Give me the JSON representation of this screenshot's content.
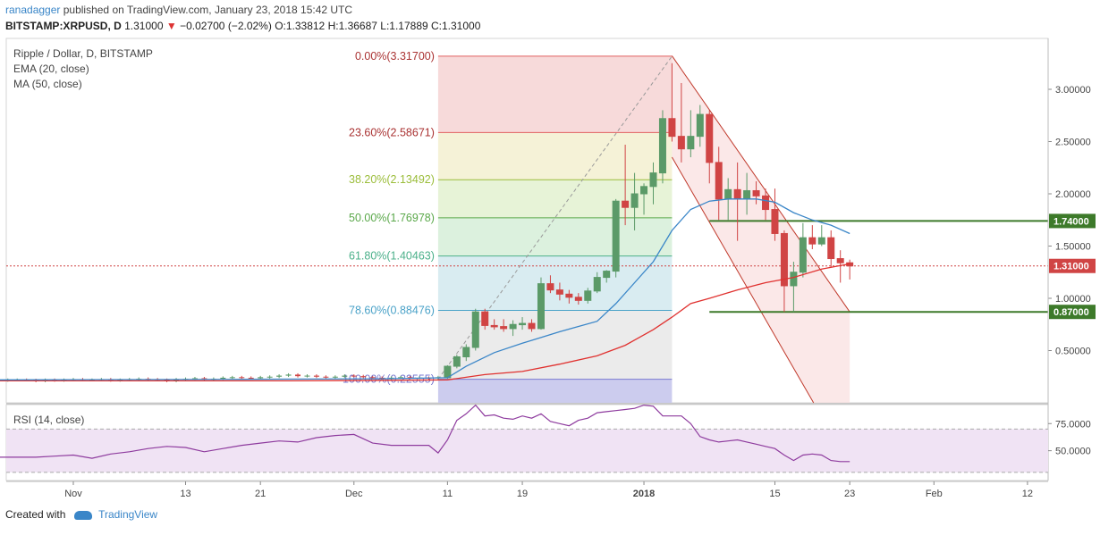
{
  "header": {
    "user": "ranadagger",
    "published_text": "published on TradingView.com, January 23, 2018 15:42 UTC",
    "symbol": "BITSTAMP:XRPUSD, D",
    "last": "1.31000",
    "change": "−0.02700 (−2.02%)",
    "ohlc": "O:1.33812 H:1.36687 L:1.17889 C:1.31000"
  },
  "footer": {
    "created_with": "Created with",
    "brand": "TradingView"
  },
  "colors": {
    "up": "#5b9a68",
    "down": "#d04444",
    "ema": "#3a86c8",
    "ma": "#e0312f",
    "rsi": "#8e3b9e",
    "trend": "#3d7a2a"
  },
  "chart_data": [
    {
      "type": "candlestick",
      "legend": [
        "Ripple / Dollar, D, BITSTAMP",
        "EMA (20, close)",
        "MA (50, close)"
      ],
      "ylim": [
        0,
        3.4
      ],
      "yticks": [
        "3.00000",
        "2.50000",
        "2.00000",
        "1.50000",
        "1.00000",
        "0.50000"
      ],
      "ytick_values": [
        3.0,
        2.5,
        2.0,
        1.5,
        1.0,
        0.5
      ],
      "xticks": [
        "Nov",
        "13",
        "21",
        "Dec",
        "11",
        "19",
        "2018",
        "15",
        "23",
        "Feb",
        "12"
      ],
      "xtick_days": [
        2,
        14,
        22,
        32,
        42,
        50,
        63,
        77,
        85,
        94,
        104
      ],
      "last_price_label": "1.31000",
      "last_price": 1.31,
      "fibonacci": [
        {
          "label": "0.00%(3.31700)",
          "value": 3.317
        },
        {
          "label": "23.60%(2.58671)",
          "value": 2.58671
        },
        {
          "label": "38.20%(2.13492)",
          "value": 2.13492
        },
        {
          "label": "50.00%(1.76978)",
          "value": 1.76978
        },
        {
          "label": "61.80%(1.40463)",
          "value": 1.40463
        },
        {
          "label": "78.60%(0.88476)",
          "value": 0.88476
        },
        {
          "label": "100.00%(0.22555)",
          "value": 0.22555
        }
      ],
      "horizontal_lines": [
        {
          "label": "1.74000",
          "value": 1.74
        },
        {
          "label": "0.87000",
          "value": 0.87
        }
      ],
      "candles_early": {
        "start_day": -6,
        "end_day": 42,
        "base": 0.22,
        "values": [
          0.215,
          0.22,
          0.22,
          0.218,
          0.21,
          0.22,
          0.215,
          0.22,
          0.225,
          0.22,
          0.22,
          0.225,
          0.215,
          0.22,
          0.225,
          0.23,
          0.225,
          0.22,
          0.21,
          0.225,
          0.23,
          0.235,
          0.225,
          0.23,
          0.24,
          0.245,
          0.24,
          0.235,
          0.245,
          0.25,
          0.26,
          0.27,
          0.255,
          0.26,
          0.25,
          0.245,
          0.25,
          0.26,
          0.255,
          0.245,
          0.24,
          0.235,
          0.24,
          0.245,
          0.24,
          0.24,
          0.235,
          0.245,
          0.25
        ]
      },
      "candles": [
        {
          "d": 42,
          "o": 0.24,
          "h": 0.36,
          "l": 0.23,
          "c": 0.35
        },
        {
          "d": 43,
          "o": 0.35,
          "h": 0.46,
          "l": 0.33,
          "c": 0.44
        },
        {
          "d": 44,
          "o": 0.44,
          "h": 0.56,
          "l": 0.4,
          "c": 0.53
        },
        {
          "d": 45,
          "o": 0.53,
          "h": 0.9,
          "l": 0.5,
          "c": 0.87
        },
        {
          "d": 46,
          "o": 0.87,
          "h": 0.9,
          "l": 0.7,
          "c": 0.74
        },
        {
          "d": 47,
          "o": 0.74,
          "h": 0.8,
          "l": 0.7,
          "c": 0.73
        },
        {
          "d": 48,
          "o": 0.73,
          "h": 0.8,
          "l": 0.68,
          "c": 0.71
        },
        {
          "d": 49,
          "o": 0.71,
          "h": 0.79,
          "l": 0.64,
          "c": 0.75
        },
        {
          "d": 50,
          "o": 0.75,
          "h": 0.82,
          "l": 0.7,
          "c": 0.76
        },
        {
          "d": 51,
          "o": 0.76,
          "h": 0.8,
          "l": 0.68,
          "c": 0.71
        },
        {
          "d": 52,
          "o": 0.71,
          "h": 1.2,
          "l": 0.7,
          "c": 1.14
        },
        {
          "d": 53,
          "o": 1.14,
          "h": 1.22,
          "l": 1.05,
          "c": 1.08
        },
        {
          "d": 54,
          "o": 1.08,
          "h": 1.15,
          "l": 0.98,
          "c": 1.04
        },
        {
          "d": 55,
          "o": 1.04,
          "h": 1.08,
          "l": 0.95,
          "c": 1.01
        },
        {
          "d": 56,
          "o": 1.01,
          "h": 1.05,
          "l": 0.94,
          "c": 0.98
        },
        {
          "d": 57,
          "o": 0.98,
          "h": 1.1,
          "l": 0.95,
          "c": 1.07
        },
        {
          "d": 58,
          "o": 1.07,
          "h": 1.25,
          "l": 1.05,
          "c": 1.2
        },
        {
          "d": 59,
          "o": 1.2,
          "h": 1.27,
          "l": 1.15,
          "c": 1.26
        },
        {
          "d": 60,
          "o": 1.26,
          "h": 1.95,
          "l": 1.2,
          "c": 1.93
        },
        {
          "d": 61,
          "o": 1.93,
          "h": 2.47,
          "l": 1.7,
          "c": 1.87
        },
        {
          "d": 62,
          "o": 1.87,
          "h": 2.2,
          "l": 1.65,
          "c": 2.0
        },
        {
          "d": 63,
          "o": 2.0,
          "h": 2.1,
          "l": 1.8,
          "c": 2.07
        },
        {
          "d": 64,
          "o": 2.07,
          "h": 2.3,
          "l": 1.9,
          "c": 2.2
        },
        {
          "d": 65,
          "o": 2.2,
          "h": 2.8,
          "l": 2.1,
          "c": 2.72
        },
        {
          "d": 66,
          "o": 2.72,
          "h": 3.25,
          "l": 2.5,
          "c": 2.55
        },
        {
          "d": 67,
          "o": 2.55,
          "h": 3.06,
          "l": 2.3,
          "c": 2.43
        },
        {
          "d": 68,
          "o": 2.43,
          "h": 2.8,
          "l": 2.35,
          "c": 2.55
        },
        {
          "d": 69,
          "o": 2.55,
          "h": 2.85,
          "l": 2.45,
          "c": 2.76
        },
        {
          "d": 70,
          "o": 2.76,
          "h": 2.8,
          "l": 2.1,
          "c": 2.3
        },
        {
          "d": 71,
          "o": 2.3,
          "h": 2.45,
          "l": 1.75,
          "c": 1.95
        },
        {
          "d": 72,
          "o": 1.95,
          "h": 2.15,
          "l": 1.75,
          "c": 2.04
        },
        {
          "d": 73,
          "o": 2.04,
          "h": 2.3,
          "l": 1.55,
          "c": 1.95
        },
        {
          "d": 74,
          "o": 1.95,
          "h": 2.2,
          "l": 1.8,
          "c": 2.03
        },
        {
          "d": 75,
          "o": 2.03,
          "h": 2.12,
          "l": 1.9,
          "c": 1.98
        },
        {
          "d": 76,
          "o": 1.98,
          "h": 2.05,
          "l": 1.75,
          "c": 1.85
        },
        {
          "d": 77,
          "o": 1.85,
          "h": 2.05,
          "l": 1.55,
          "c": 1.62
        },
        {
          "d": 78,
          "o": 1.62,
          "h": 1.65,
          "l": 0.87,
          "c": 1.12
        },
        {
          "d": 79,
          "o": 1.12,
          "h": 1.35,
          "l": 0.87,
          "c": 1.25
        },
        {
          "d": 80,
          "o": 1.25,
          "h": 1.72,
          "l": 1.2,
          "c": 1.58
        },
        {
          "d": 81,
          "o": 1.58,
          "h": 1.7,
          "l": 1.47,
          "c": 1.52
        },
        {
          "d": 82,
          "o": 1.52,
          "h": 1.7,
          "l": 1.5,
          "c": 1.58
        },
        {
          "d": 83,
          "o": 1.58,
          "h": 1.65,
          "l": 1.3,
          "c": 1.38
        },
        {
          "d": 84,
          "o": 1.38,
          "h": 1.46,
          "l": 1.15,
          "c": 1.34
        },
        {
          "d": 85,
          "o": 1.34,
          "h": 1.37,
          "l": 1.18,
          "c": 1.31
        }
      ],
      "ema20": [
        [
          -6,
          0.22
        ],
        [
          20,
          0.225
        ],
        [
          35,
          0.23
        ],
        [
          42,
          0.24
        ],
        [
          44,
          0.35
        ],
        [
          47,
          0.48
        ],
        [
          50,
          0.57
        ],
        [
          54,
          0.68
        ],
        [
          58,
          0.78
        ],
        [
          60,
          0.95
        ],
        [
          62,
          1.15
        ],
        [
          64,
          1.35
        ],
        [
          66,
          1.65
        ],
        [
          68,
          1.85
        ],
        [
          70,
          1.93
        ],
        [
          72,
          1.95
        ],
        [
          75,
          1.95
        ],
        [
          77,
          1.92
        ],
        [
          79,
          1.82
        ],
        [
          81,
          1.75
        ],
        [
          83,
          1.7
        ],
        [
          85,
          1.62
        ]
      ],
      "ma50": [
        [
          -6,
          0.21
        ],
        [
          25,
          0.21
        ],
        [
          35,
          0.215
        ],
        [
          42,
          0.22
        ],
        [
          46,
          0.27
        ],
        [
          50,
          0.3
        ],
        [
          54,
          0.37
        ],
        [
          58,
          0.45
        ],
        [
          61,
          0.55
        ],
        [
          64,
          0.7
        ],
        [
          66,
          0.82
        ],
        [
          68,
          0.95
        ],
        [
          70,
          1.0
        ],
        [
          73,
          1.08
        ],
        [
          76,
          1.15
        ],
        [
          79,
          1.2
        ],
        [
          82,
          1.28
        ],
        [
          85,
          1.33
        ]
      ],
      "channel": {
        "upper": [
          [
            66,
            3.32
          ],
          [
            85,
            0.87
          ]
        ],
        "lower": [
          [
            66,
            2.35
          ],
          [
            85,
            -0.6
          ]
        ]
      },
      "fib_anchor": {
        "start_day": 41,
        "end_day": 66,
        "low": 0.22555,
        "high": 3.317
      }
    },
    {
      "type": "line",
      "legend": [
        "RSI (14, close)"
      ],
      "ylim": [
        25,
        95
      ],
      "yticks": [
        "75.0000",
        "50.0000"
      ],
      "ytick_values": [
        75,
        50
      ],
      "band": [
        30,
        70
      ],
      "x": [
        -6,
        -4,
        -2,
        0,
        2,
        4,
        6,
        8,
        10,
        12,
        14,
        16,
        18,
        20,
        22,
        24,
        26,
        28,
        30,
        32,
        34,
        36,
        38,
        40,
        41,
        42,
        43,
        44,
        45,
        46,
        47,
        48,
        49,
        50,
        51,
        52,
        53,
        54,
        55,
        56,
        57,
        58,
        59,
        60,
        61,
        62,
        63,
        64,
        65,
        66,
        67,
        68,
        69,
        70,
        71,
        72,
        73,
        74,
        75,
        76,
        77,
        78,
        79,
        80,
        81,
        82,
        83,
        84,
        85
      ],
      "values": [
        44,
        44,
        44,
        45,
        46,
        43,
        47,
        49,
        52,
        54,
        53,
        49,
        52,
        55,
        57,
        59,
        58,
        62,
        64,
        65,
        57,
        55,
        55,
        55,
        48,
        60,
        78,
        84,
        92,
        82,
        83,
        80,
        79,
        82,
        80,
        84,
        77,
        75,
        73,
        78,
        80,
        85,
        86,
        87,
        88,
        89,
        92,
        91,
        82,
        82,
        82,
        75,
        63,
        60,
        58,
        59,
        60,
        58,
        56,
        54,
        52,
        46,
        41,
        46,
        47,
        46,
        41,
        40,
        40
      ]
    }
  ]
}
